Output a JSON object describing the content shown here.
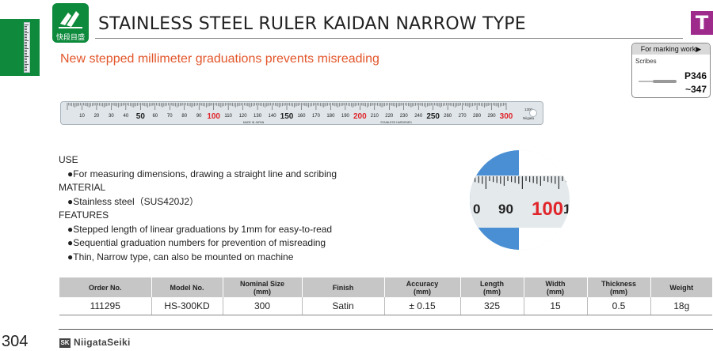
{
  "header": {
    "title": "STAINLESS STEEL RULER KAIDAN NARROW TYPE",
    "logo_text": "快段目盛",
    "category_badge": "T",
    "subtitle": "New stepped millimeter graduations prevents misreading"
  },
  "marking_box": {
    "heading": "For marking work▶",
    "item": "Scribes",
    "page_line1": "P346",
    "page_line2": "~347"
  },
  "ruler_image": {
    "labels": [
      "10",
      "20",
      "30",
      "40",
      "50",
      "60",
      "70",
      "80",
      "90",
      "100",
      "110",
      "120",
      "130",
      "140",
      "150",
      "160",
      "170",
      "180",
      "190",
      "200",
      "210",
      "220",
      "230",
      "240",
      "250",
      "260",
      "270",
      "280",
      "290",
      "300"
    ],
    "red_labels": [
      "100",
      "200",
      "300"
    ],
    "bold_labels": [
      "50",
      "150",
      "250"
    ],
    "imprint_left": "MADE IN JAPAN",
    "imprint_right": "STAINLESS HARDENED",
    "model_mark": "1300",
    "end_mark": "Niigata"
  },
  "magnifier": {
    "labels": [
      "0",
      "90",
      "100",
      "1"
    ],
    "colors": {
      "blue": "#4a8fd4",
      "steel": "#e4e9ec",
      "red": "#e0262b"
    }
  },
  "specs": {
    "use_heading": "USE",
    "use_items": [
      "●For measuring dimensions, drawing a straight line and scribing"
    ],
    "material_heading": "MATERIAL",
    "material_items": [
      "●Stainless steel（SUS420J2）"
    ],
    "features_heading": "FEATURES",
    "features_items": [
      "●Stepped length of linear graduations by 1mm for easy-to-read",
      "●Sequential graduation numbers for prevention of misreading",
      "●Thin, Narrow type, can also be mounted on machine"
    ]
  },
  "table": {
    "headers": [
      [
        "Order No."
      ],
      [
        "Model No."
      ],
      [
        "Nominal Size",
        "(mm)"
      ],
      [
        "Finish"
      ],
      [
        "Accuracy",
        "(mm)"
      ],
      [
        "Length",
        "(mm)"
      ],
      [
        "Width",
        "(mm)"
      ],
      [
        "Thickness",
        "(mm)"
      ],
      [
        "Weight"
      ]
    ],
    "rows": [
      [
        "111295",
        "HS-300KD",
        "300",
        "Satin",
        "± 0.15",
        "325",
        "15",
        "0.5",
        "18g"
      ]
    ]
  },
  "footer": {
    "page_number": "304",
    "brand_mark": "SK",
    "brand_name": "NiigataSeiki"
  },
  "colors": {
    "green": "#0f8a3d",
    "accent_orange": "#e2552a",
    "category_purple": "#9e2b8c",
    "table_header_gray": "#c6c6c6",
    "red_graduation": "#e0262b"
  }
}
